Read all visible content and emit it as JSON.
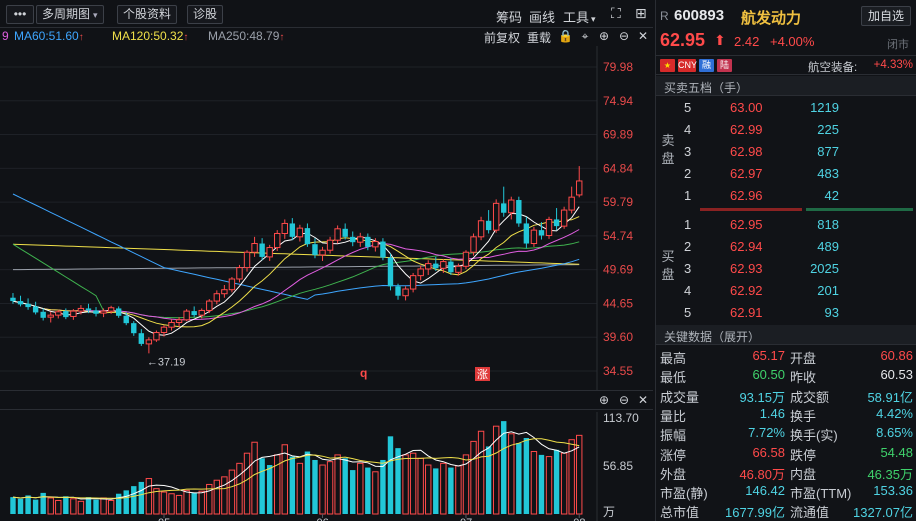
{
  "toolbar": {
    "menu_label": "•••",
    "period_label": "多周期图",
    "stock_info_label": "个股资料",
    "diagnose_label": "诊股",
    "chip_label": "筹码",
    "draw_label": "画线",
    "tools_label": "工具",
    "adjust_label": "前复权",
    "replay_label": "重载"
  },
  "ma": [
    {
      "label": "MA60:51.60",
      "color": "#3ea6ff"
    },
    {
      "label": "MA120:50.32",
      "color": "#f0e04a"
    },
    {
      "label": "MA250:48.79",
      "color": "#9aa0aa"
    }
  ],
  "ma_first_fragment": "9",
  "colors": {
    "up": "#ff4a4a",
    "down": "#22c7d8",
    "ma5": "#ffffff",
    "ma10": "#f0e04a",
    "ma20": "#e05ee0",
    "ma30": "#3fb34f",
    "ma60": "#3ea6ff",
    "ma120": "#f0e04a",
    "ma250": "#9aa0aa"
  },
  "chart_data": [
    {
      "type": "candlestick",
      "y_ticks": [
        "79.98",
        "74.94",
        "69.89",
        "64.84",
        "59.79",
        "54.74",
        "49.69",
        "44.65",
        "39.60",
        "34.55"
      ],
      "ylim": [
        34.55,
        79.98
      ],
      "x_ticks": [
        "05",
        "06",
        "07",
        "08"
      ],
      "low_annotation": "←37.19",
      "markers": [
        {
          "label": "q"
        },
        {
          "label": "涨"
        }
      ],
      "series": [
        {
          "name": "daily",
          "ohlc": [
            [
              45.5,
              46.2,
              44.6,
              45.0
            ],
            [
              45.0,
              45.8,
              44.2,
              44.5
            ],
            [
              44.6,
              45.4,
              43.7,
              44.1
            ],
            [
              44.2,
              44.9,
              43.0,
              43.3
            ],
            [
              43.4,
              43.9,
              42.1,
              42.5
            ],
            [
              42.6,
              43.4,
              41.8,
              42.9
            ],
            [
              42.9,
              43.7,
              42.4,
              43.4
            ],
            [
              43.5,
              43.9,
              42.3,
              42.6
            ],
            [
              42.7,
              43.8,
              42.2,
              43.5
            ],
            [
              43.5,
              44.4,
              43.0,
              43.9
            ],
            [
              43.9,
              44.6,
              43.2,
              43.6
            ],
            [
              43.6,
              44.1,
              42.7,
              43.1
            ],
            [
              43.2,
              43.9,
              42.6,
              43.5
            ],
            [
              43.5,
              44.3,
              43.1,
              44.0
            ],
            [
              43.9,
              44.2,
              42.5,
              42.8
            ],
            [
              42.8,
              43.3,
              41.4,
              41.7
            ],
            [
              41.7,
              42.0,
              39.8,
              40.2
            ],
            [
              40.2,
              40.8,
              38.3,
              38.6
            ],
            [
              38.6,
              39.6,
              37.19,
              39.2
            ],
            [
              39.2,
              40.6,
              38.9,
              40.3
            ],
            [
              40.3,
              41.4,
              39.7,
              41.1
            ],
            [
              41.1,
              42.3,
              40.6,
              41.8
            ],
            [
              41.8,
              42.6,
              41.1,
              42.2
            ],
            [
              42.2,
              43.8,
              42.0,
              43.5
            ],
            [
              43.5,
              44.2,
              42.6,
              42.9
            ],
            [
              42.9,
              43.9,
              42.4,
              43.6
            ],
            [
              43.6,
              45.3,
              43.2,
              45.0
            ],
            [
              45.0,
              46.6,
              44.5,
              46.1
            ],
            [
              46.1,
              47.4,
              45.5,
              46.7
            ],
            [
              46.7,
              48.6,
              46.3,
              48.3
            ],
            [
              48.3,
              50.4,
              47.8,
              50.0
            ],
            [
              50.0,
              52.6,
              49.4,
              52.3
            ],
            [
              52.3,
              54.6,
              51.6,
              53.6
            ],
            [
              53.6,
              54.4,
              51.1,
              51.6
            ],
            [
              51.6,
              53.4,
              51.0,
              53.0
            ],
            [
              53.0,
              55.6,
              52.5,
              55.1
            ],
            [
              55.1,
              57.2,
              54.3,
              56.6
            ],
            [
              56.6,
              57.4,
              54.1,
              54.6
            ],
            [
              54.6,
              56.4,
              53.9,
              55.9
            ],
            [
              55.9,
              56.6,
              53.1,
              53.5
            ],
            [
              53.5,
              54.4,
              51.4,
              51.9
            ],
            [
              51.9,
              53.1,
              51.0,
              52.6
            ],
            [
              52.6,
              54.6,
              52.1,
              54.1
            ],
            [
              54.1,
              56.3,
              53.6,
              55.8
            ],
            [
              55.8,
              56.6,
              54.2,
              54.6
            ],
            [
              54.6,
              55.4,
              53.2,
              53.8
            ],
            [
              53.8,
              55.2,
              53.1,
              54.6
            ],
            [
              54.6,
              55.1,
              52.6,
              53.1
            ],
            [
              53.1,
              54.4,
              52.4,
              53.9
            ],
            [
              53.9,
              54.4,
              51.1,
              51.5
            ],
            [
              51.5,
              52.1,
              46.6,
              47.2
            ],
            [
              47.2,
              47.6,
              45.2,
              45.8
            ],
            [
              45.8,
              47.2,
              45.1,
              46.8
            ],
            [
              46.8,
              49.2,
              46.3,
              48.8
            ],
            [
              48.8,
              50.3,
              48.1,
              49.8
            ],
            [
              49.8,
              51.1,
              48.9,
              50.6
            ],
            [
              50.6,
              51.6,
              49.5,
              49.9
            ],
            [
              49.9,
              51.3,
              49.2,
              50.9
            ],
            [
              50.9,
              51.4,
              48.9,
              49.3
            ],
            [
              49.3,
              50.6,
              48.8,
              50.2
            ],
            [
              50.2,
              52.6,
              49.8,
              52.3
            ],
            [
              52.3,
              55.1,
              51.8,
              54.6
            ],
            [
              54.6,
              57.6,
              54.1,
              57.0
            ],
            [
              57.0,
              58.6,
              55.1,
              55.6
            ],
            [
              55.6,
              60.2,
              55.2,
              59.6
            ],
            [
              59.6,
              62.1,
              57.6,
              58.2
            ],
            [
              58.2,
              60.6,
              57.2,
              60.1
            ],
            [
              60.1,
              60.6,
              56.1,
              56.6
            ],
            [
              56.6,
              57.6,
              52.9,
              53.6
            ],
            [
              53.6,
              56.1,
              53.1,
              55.6
            ],
            [
              55.6,
              56.8,
              54.2,
              54.8
            ],
            [
              54.8,
              57.6,
              54.3,
              57.2
            ],
            [
              57.2,
              58.9,
              55.6,
              56.2
            ],
            [
              56.2,
              59.1,
              55.8,
              58.6
            ],
            [
              58.6,
              62.1,
              58.1,
              60.53
            ],
            [
              60.86,
              65.17,
              60.5,
              62.95
            ]
          ]
        }
      ]
    },
    {
      "type": "bar",
      "name": "volume",
      "y_ticks": [
        "113.70",
        "56.85",
        "万"
      ],
      "ylim": [
        0,
        113.7
      ],
      "values": [
        20,
        18,
        22,
        17,
        25,
        19,
        16,
        21,
        18,
        15,
        20,
        17,
        19,
        16,
        24,
        28,
        33,
        38,
        42,
        30,
        26,
        24,
        22,
        28,
        25,
        27,
        35,
        40,
        44,
        52,
        60,
        72,
        85,
        66,
        58,
        70,
        82,
        68,
        60,
        74,
        64,
        58,
        62,
        70,
        66,
        52,
        60,
        55,
        50,
        64,
        92,
        78,
        70,
        72,
        66,
        58,
        54,
        60,
        55,
        57,
        70,
        86,
        98,
        80,
        104,
        110,
        95,
        84,
        90,
        74,
        70,
        68,
        76,
        72,
        88,
        93.15
      ],
      "up": [
        false,
        false,
        false,
        false,
        false,
        true,
        true,
        false,
        true,
        true,
        false,
        false,
        true,
        true,
        false,
        false,
        false,
        false,
        true,
        true,
        true,
        true,
        true,
        true,
        false,
        true,
        true,
        true,
        true,
        true,
        true,
        true,
        true,
        false,
        false,
        true,
        true,
        false,
        true,
        false,
        false,
        true,
        true,
        true,
        false,
        false,
        true,
        false,
        true,
        false,
        false,
        false,
        true,
        true,
        true,
        true,
        false,
        true,
        false,
        true,
        true,
        true,
        true,
        false,
        true,
        false,
        true,
        false,
        false,
        true,
        false,
        true,
        false,
        true,
        true,
        true
      ]
    }
  ],
  "quote": {
    "market_tag": "R",
    "code": "600893",
    "name": "航发动力",
    "watch_label": "加自选",
    "price": "62.95",
    "change": "2.42",
    "change_pct": "+4.00%",
    "status": "闭市",
    "tags": [
      "",
      "CNY",
      "融",
      "陆"
    ],
    "sector": "航空装备:",
    "sector_pct": "+4.33%"
  },
  "orderbook": {
    "title": "买卖五档（手）",
    "sell_label": "卖盘",
    "buy_label": "买盘",
    "sell": [
      {
        "level": "5",
        "price": "63.00",
        "volume": "1219"
      },
      {
        "level": "4",
        "price": "62.99",
        "volume": "225"
      },
      {
        "level": "3",
        "price": "62.98",
        "volume": "877"
      },
      {
        "level": "2",
        "price": "62.97",
        "volume": "483"
      },
      {
        "level": "1",
        "price": "62.96",
        "volume": "42"
      }
    ],
    "buy": [
      {
        "level": "1",
        "price": "62.95",
        "volume": "818"
      },
      {
        "level": "2",
        "price": "62.94",
        "volume": "489"
      },
      {
        "level": "3",
        "price": "62.93",
        "volume": "2025"
      },
      {
        "level": "4",
        "price": "62.92",
        "volume": "201"
      },
      {
        "level": "5",
        "price": "62.91",
        "volume": "93"
      }
    ]
  },
  "keydata": {
    "title": "关键数据（展开）",
    "rows": [
      {
        "k1": "最高",
        "v1": "65.17",
        "c1": "red",
        "k2": "开盘",
        "v2": "60.86",
        "c2": "red"
      },
      {
        "k1": "最低",
        "v1": "60.50",
        "c1": "green",
        "k2": "昨收",
        "v2": "60.53",
        "c2": "white"
      },
      {
        "k1": "成交量",
        "v1": "93.15万",
        "c1": "cyan",
        "k2": "成交额",
        "v2": "58.91亿",
        "c2": "cyan"
      },
      {
        "k1": "量比",
        "v1": "1.46",
        "c1": "cyan",
        "k2": "换手",
        "v2": "4.42%",
        "c2": "cyan"
      },
      {
        "k1": "振幅",
        "v1": "7.72%",
        "c1": "cyan",
        "k2": "换手(实)",
        "v2": "8.65%",
        "c2": "cyan"
      },
      {
        "k1": "涨停",
        "v1": "66.58",
        "c1": "red",
        "k2": "跌停",
        "v2": "54.48",
        "c2": "green"
      },
      {
        "k1": "外盘",
        "v1": "46.80万",
        "c1": "red",
        "k2": "内盘",
        "v2": "46.35万",
        "c2": "green"
      },
      {
        "k1": "市盈(静)",
        "v1": "146.42",
        "c1": "cyan",
        "k2": "市盈(TTM)",
        "v2": "153.36",
        "c2": "cyan"
      },
      {
        "k1": "总市值",
        "v1": "1677.99亿",
        "c1": "cyan",
        "k2": "流通值",
        "v2": "1327.07亿",
        "c2": "cyan"
      }
    ]
  }
}
